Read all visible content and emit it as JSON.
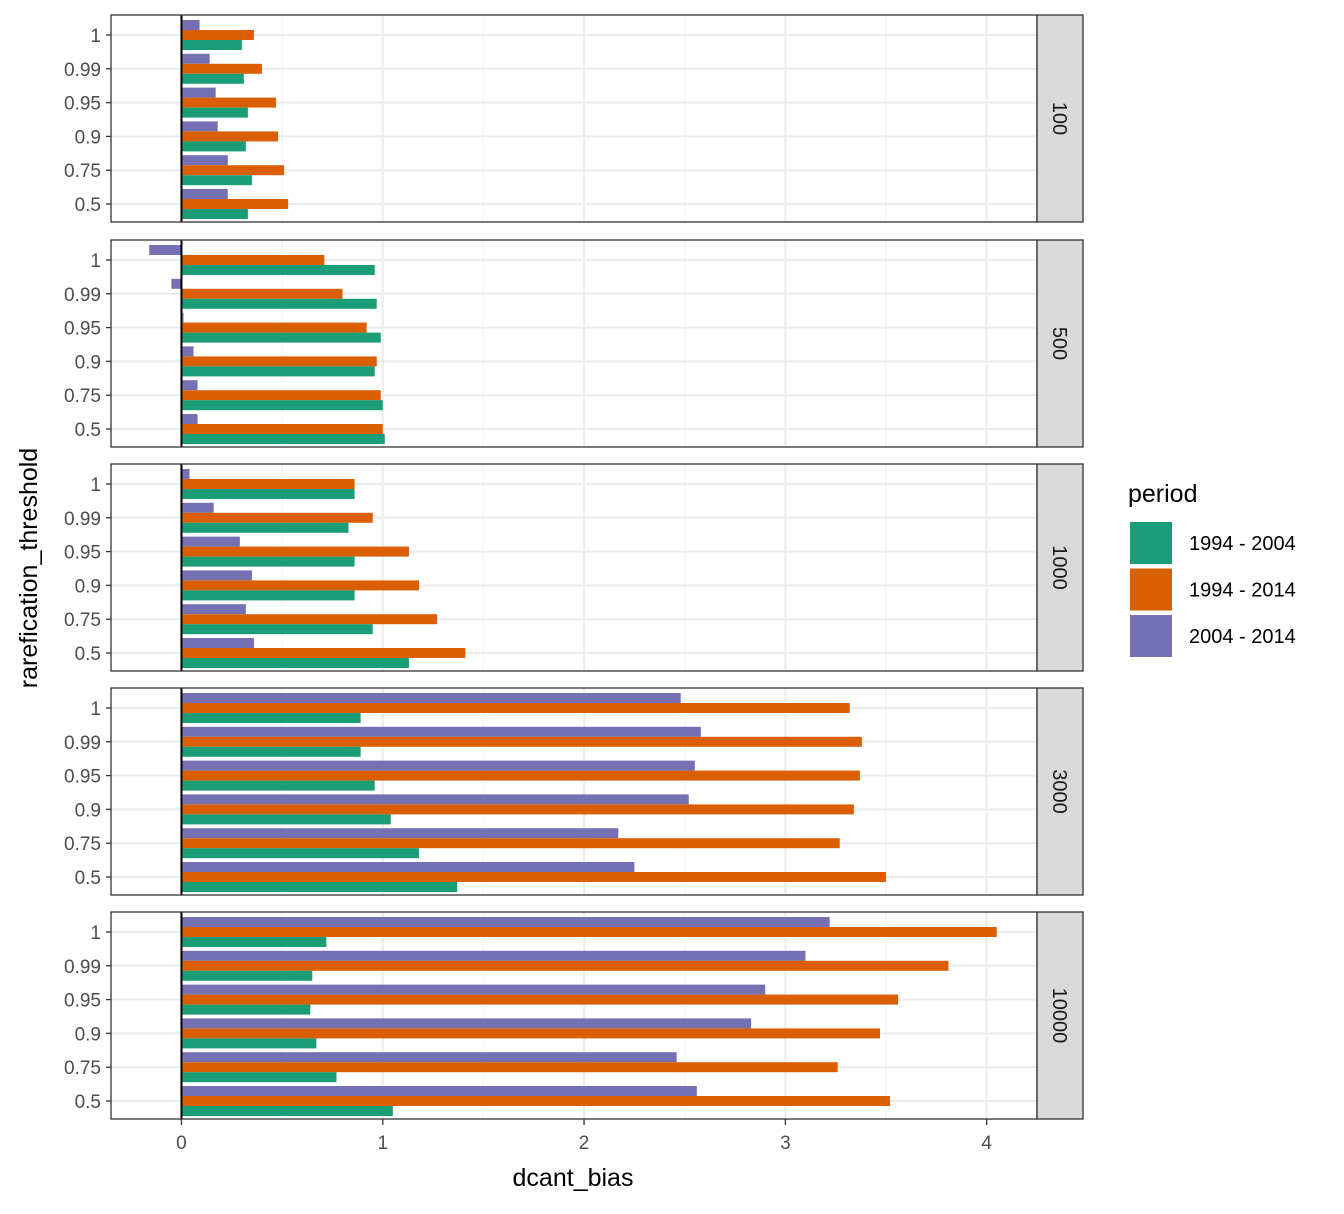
{
  "chart_data": {
    "type": "bar",
    "orientation": "horizontal",
    "facet_variable": "",
    "xlabel": "dcant_bias",
    "ylabel": "rarefication_threshold",
    "xlim": [
      -0.35,
      4.25
    ],
    "x_ticks": [
      0,
      1,
      2,
      3,
      4
    ],
    "categories": [
      "1",
      "0.99",
      "0.95",
      "0.9",
      "0.75",
      "0.5"
    ],
    "grid": true,
    "legend": {
      "title": "period",
      "position": "right",
      "entries": [
        {
          "name": "1994 - 2004",
          "color": "#1b9e77"
        },
        {
          "name": "1994 - 2014",
          "color": "#d95f02"
        },
        {
          "name": "2004 - 2014",
          "color": "#7570b3"
        }
      ]
    },
    "facets": [
      {
        "label": "100",
        "series": [
          {
            "name": "1994 - 2004",
            "values": [
              0.3,
              0.31,
              0.33,
              0.32,
              0.35,
              0.33
            ]
          },
          {
            "name": "1994 - 2014",
            "values": [
              0.36,
              0.4,
              0.47,
              0.48,
              0.51,
              0.53
            ]
          },
          {
            "name": "2004 - 2014",
            "values": [
              0.09,
              0.14,
              0.17,
              0.18,
              0.23,
              0.23
            ]
          }
        ]
      },
      {
        "label": "500",
        "series": [
          {
            "name": "1994 - 2004",
            "values": [
              0.96,
              0.97,
              0.99,
              0.96,
              1.0,
              1.01
            ]
          },
          {
            "name": "1994 - 2014",
            "values": [
              0.71,
              0.8,
              0.92,
              0.97,
              0.99,
              1.0
            ]
          },
          {
            "name": "2004 - 2014",
            "values": [
              -0.16,
              -0.05,
              0.01,
              0.06,
              0.08,
              0.08
            ]
          }
        ]
      },
      {
        "label": "1000",
        "series": [
          {
            "name": "1994 - 2004",
            "values": [
              0.86,
              0.83,
              0.86,
              0.86,
              0.95,
              1.13
            ]
          },
          {
            "name": "1994 - 2014",
            "values": [
              0.86,
              0.95,
              1.13,
              1.18,
              1.27,
              1.41
            ]
          },
          {
            "name": "2004 - 2014",
            "values": [
              0.04,
              0.16,
              0.29,
              0.35,
              0.32,
              0.36
            ]
          }
        ]
      },
      {
        "label": "3000",
        "series": [
          {
            "name": "1994 - 2004",
            "values": [
              0.89,
              0.89,
              0.96,
              1.04,
              1.18,
              1.37
            ]
          },
          {
            "name": "1994 - 2014",
            "values": [
              3.32,
              3.38,
              3.37,
              3.34,
              3.27,
              3.5
            ]
          },
          {
            "name": "2004 - 2014",
            "values": [
              2.48,
              2.58,
              2.55,
              2.52,
              2.17,
              2.25
            ]
          }
        ]
      },
      {
        "label": "10000",
        "series": [
          {
            "name": "1994 - 2004",
            "values": [
              0.72,
              0.65,
              0.64,
              0.67,
              0.77,
              1.05
            ]
          },
          {
            "name": "1994 - 2014",
            "values": [
              4.05,
              3.81,
              3.56,
              3.47,
              3.26,
              3.52
            ]
          },
          {
            "name": "2004 - 2014",
            "values": [
              3.22,
              3.1,
              2.9,
              2.83,
              2.46,
              2.56
            ]
          }
        ]
      }
    ]
  }
}
